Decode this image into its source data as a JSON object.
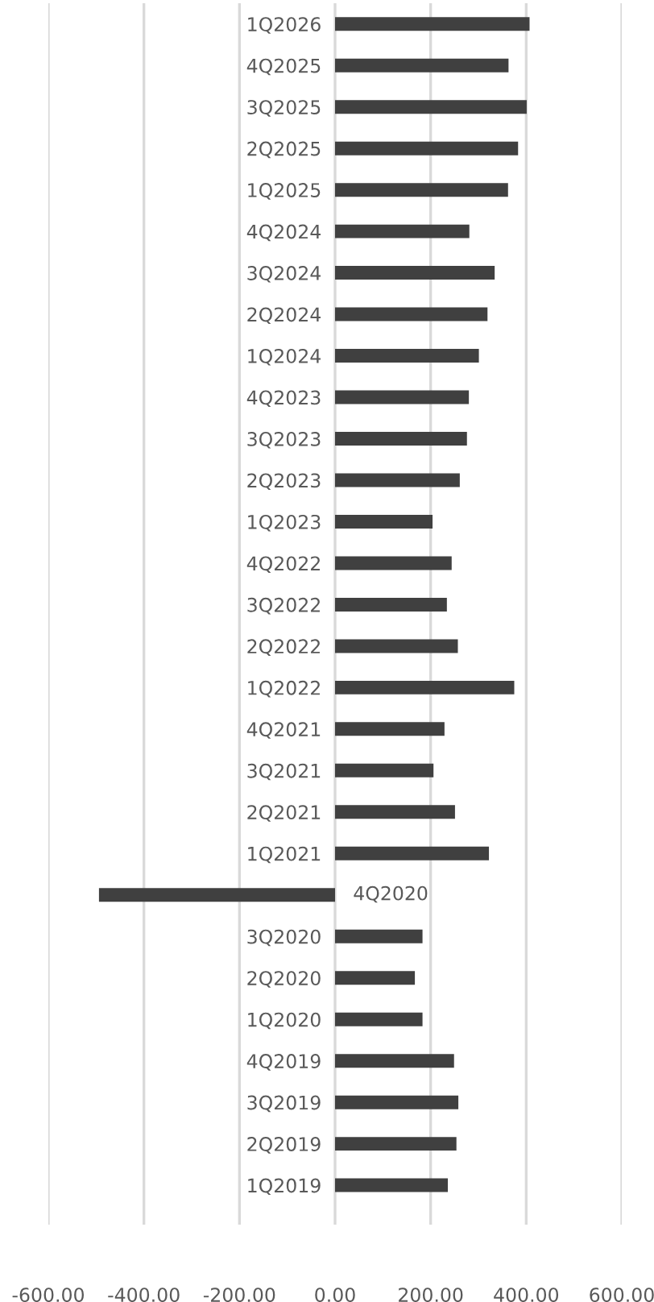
{
  "chart_data": {
    "type": "bar",
    "orientation": "horizontal",
    "categories": [
      "1Q2026",
      "4Q2025",
      "3Q2025",
      "2Q2025",
      "1Q2025",
      "4Q2024",
      "3Q2024",
      "2Q2024",
      "1Q2024",
      "4Q2023",
      "3Q2023",
      "2Q2023",
      "1Q2023",
      "4Q2022",
      "3Q2022",
      "2Q2022",
      "1Q2022",
      "4Q2021",
      "3Q2021",
      "2Q2021",
      "1Q2021",
      "4Q2020",
      "3Q2020",
      "2Q2020",
      "1Q2020",
      "4Q2019",
      "3Q2019",
      "2Q2019",
      "1Q2019"
    ],
    "values": [
      407,
      363,
      401,
      383,
      362,
      281,
      334,
      319,
      301,
      280,
      276,
      261,
      204,
      244,
      234,
      257,
      375,
      229,
      206,
      251,
      322,
      -494,
      183,
      167,
      183,
      249,
      258,
      254,
      236
    ],
    "color": "#404040",
    "xlim": [
      -600,
      600
    ],
    "xticks": [
      {
        "value": -600,
        "label": "-600.00"
      },
      {
        "value": -400,
        "label": "-400.00"
      },
      {
        "value": -200,
        "label": "-200.00"
      },
      {
        "value": 0,
        "label": "0.00"
      },
      {
        "value": 200,
        "label": "200.00"
      },
      {
        "value": 400,
        "label": "400.00"
      },
      {
        "value": 600,
        "label": "600.00"
      }
    ],
    "grid": "x",
    "legend": false
  }
}
